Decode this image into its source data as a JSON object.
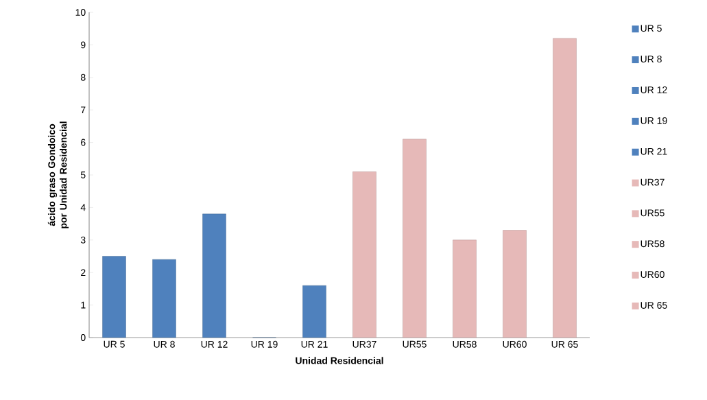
{
  "chart_data": {
    "type": "bar",
    "xlabel": "Unidad Residencial",
    "ylabel": "ácido graso Gondoico por Unidad Residencial",
    "categories": [
      "UR 5",
      "UR 8",
      "UR 12",
      "UR 19",
      "UR 21",
      "UR37",
      "UR55",
      "UR58",
      "UR60",
      "UR 65"
    ],
    "series": [
      {
        "name": "UR 5",
        "color": "#4f81bd",
        "values": [
          2.5,
          null,
          null,
          null,
          null,
          null,
          null,
          null,
          null,
          null
        ]
      },
      {
        "name": "UR 8",
        "color": "#4f81bd",
        "values": [
          null,
          2.4,
          null,
          null,
          null,
          null,
          null,
          null,
          null,
          null
        ]
      },
      {
        "name": "UR 12",
        "color": "#4f81bd",
        "values": [
          null,
          null,
          3.8,
          null,
          null,
          null,
          null,
          null,
          null,
          null
        ]
      },
      {
        "name": "UR 19",
        "color": "#4f81bd",
        "values": [
          null,
          null,
          null,
          0,
          null,
          null,
          null,
          null,
          null,
          null
        ]
      },
      {
        "name": "UR 21",
        "color": "#4f81bd",
        "values": [
          null,
          null,
          null,
          null,
          1.6,
          null,
          null,
          null,
          null,
          null
        ]
      },
      {
        "name": "UR37",
        "color": "#e6b9b8",
        "values": [
          null,
          null,
          null,
          null,
          null,
          5.1,
          null,
          null,
          null,
          null
        ]
      },
      {
        "name": "UR55",
        "color": "#e6b9b8",
        "values": [
          null,
          null,
          null,
          null,
          null,
          null,
          6.1,
          null,
          null,
          null
        ]
      },
      {
        "name": "UR58",
        "color": "#e6b9b8",
        "values": [
          null,
          null,
          null,
          null,
          null,
          null,
          null,
          3.0,
          null,
          null
        ]
      },
      {
        "name": "UR60",
        "color": "#e6b9b8",
        "values": [
          null,
          null,
          null,
          null,
          null,
          null,
          null,
          null,
          3.3,
          null
        ]
      },
      {
        "name": "UR 65",
        "color": "#e6b9b8",
        "values": [
          null,
          null,
          null,
          null,
          null,
          null,
          null,
          null,
          null,
          9.2
        ]
      }
    ],
    "ylim": [
      0,
      10
    ],
    "yticks": [
      0,
      1,
      2,
      3,
      4,
      5,
      6,
      7,
      8,
      9,
      10
    ],
    "legend": "right",
    "grid": false
  }
}
